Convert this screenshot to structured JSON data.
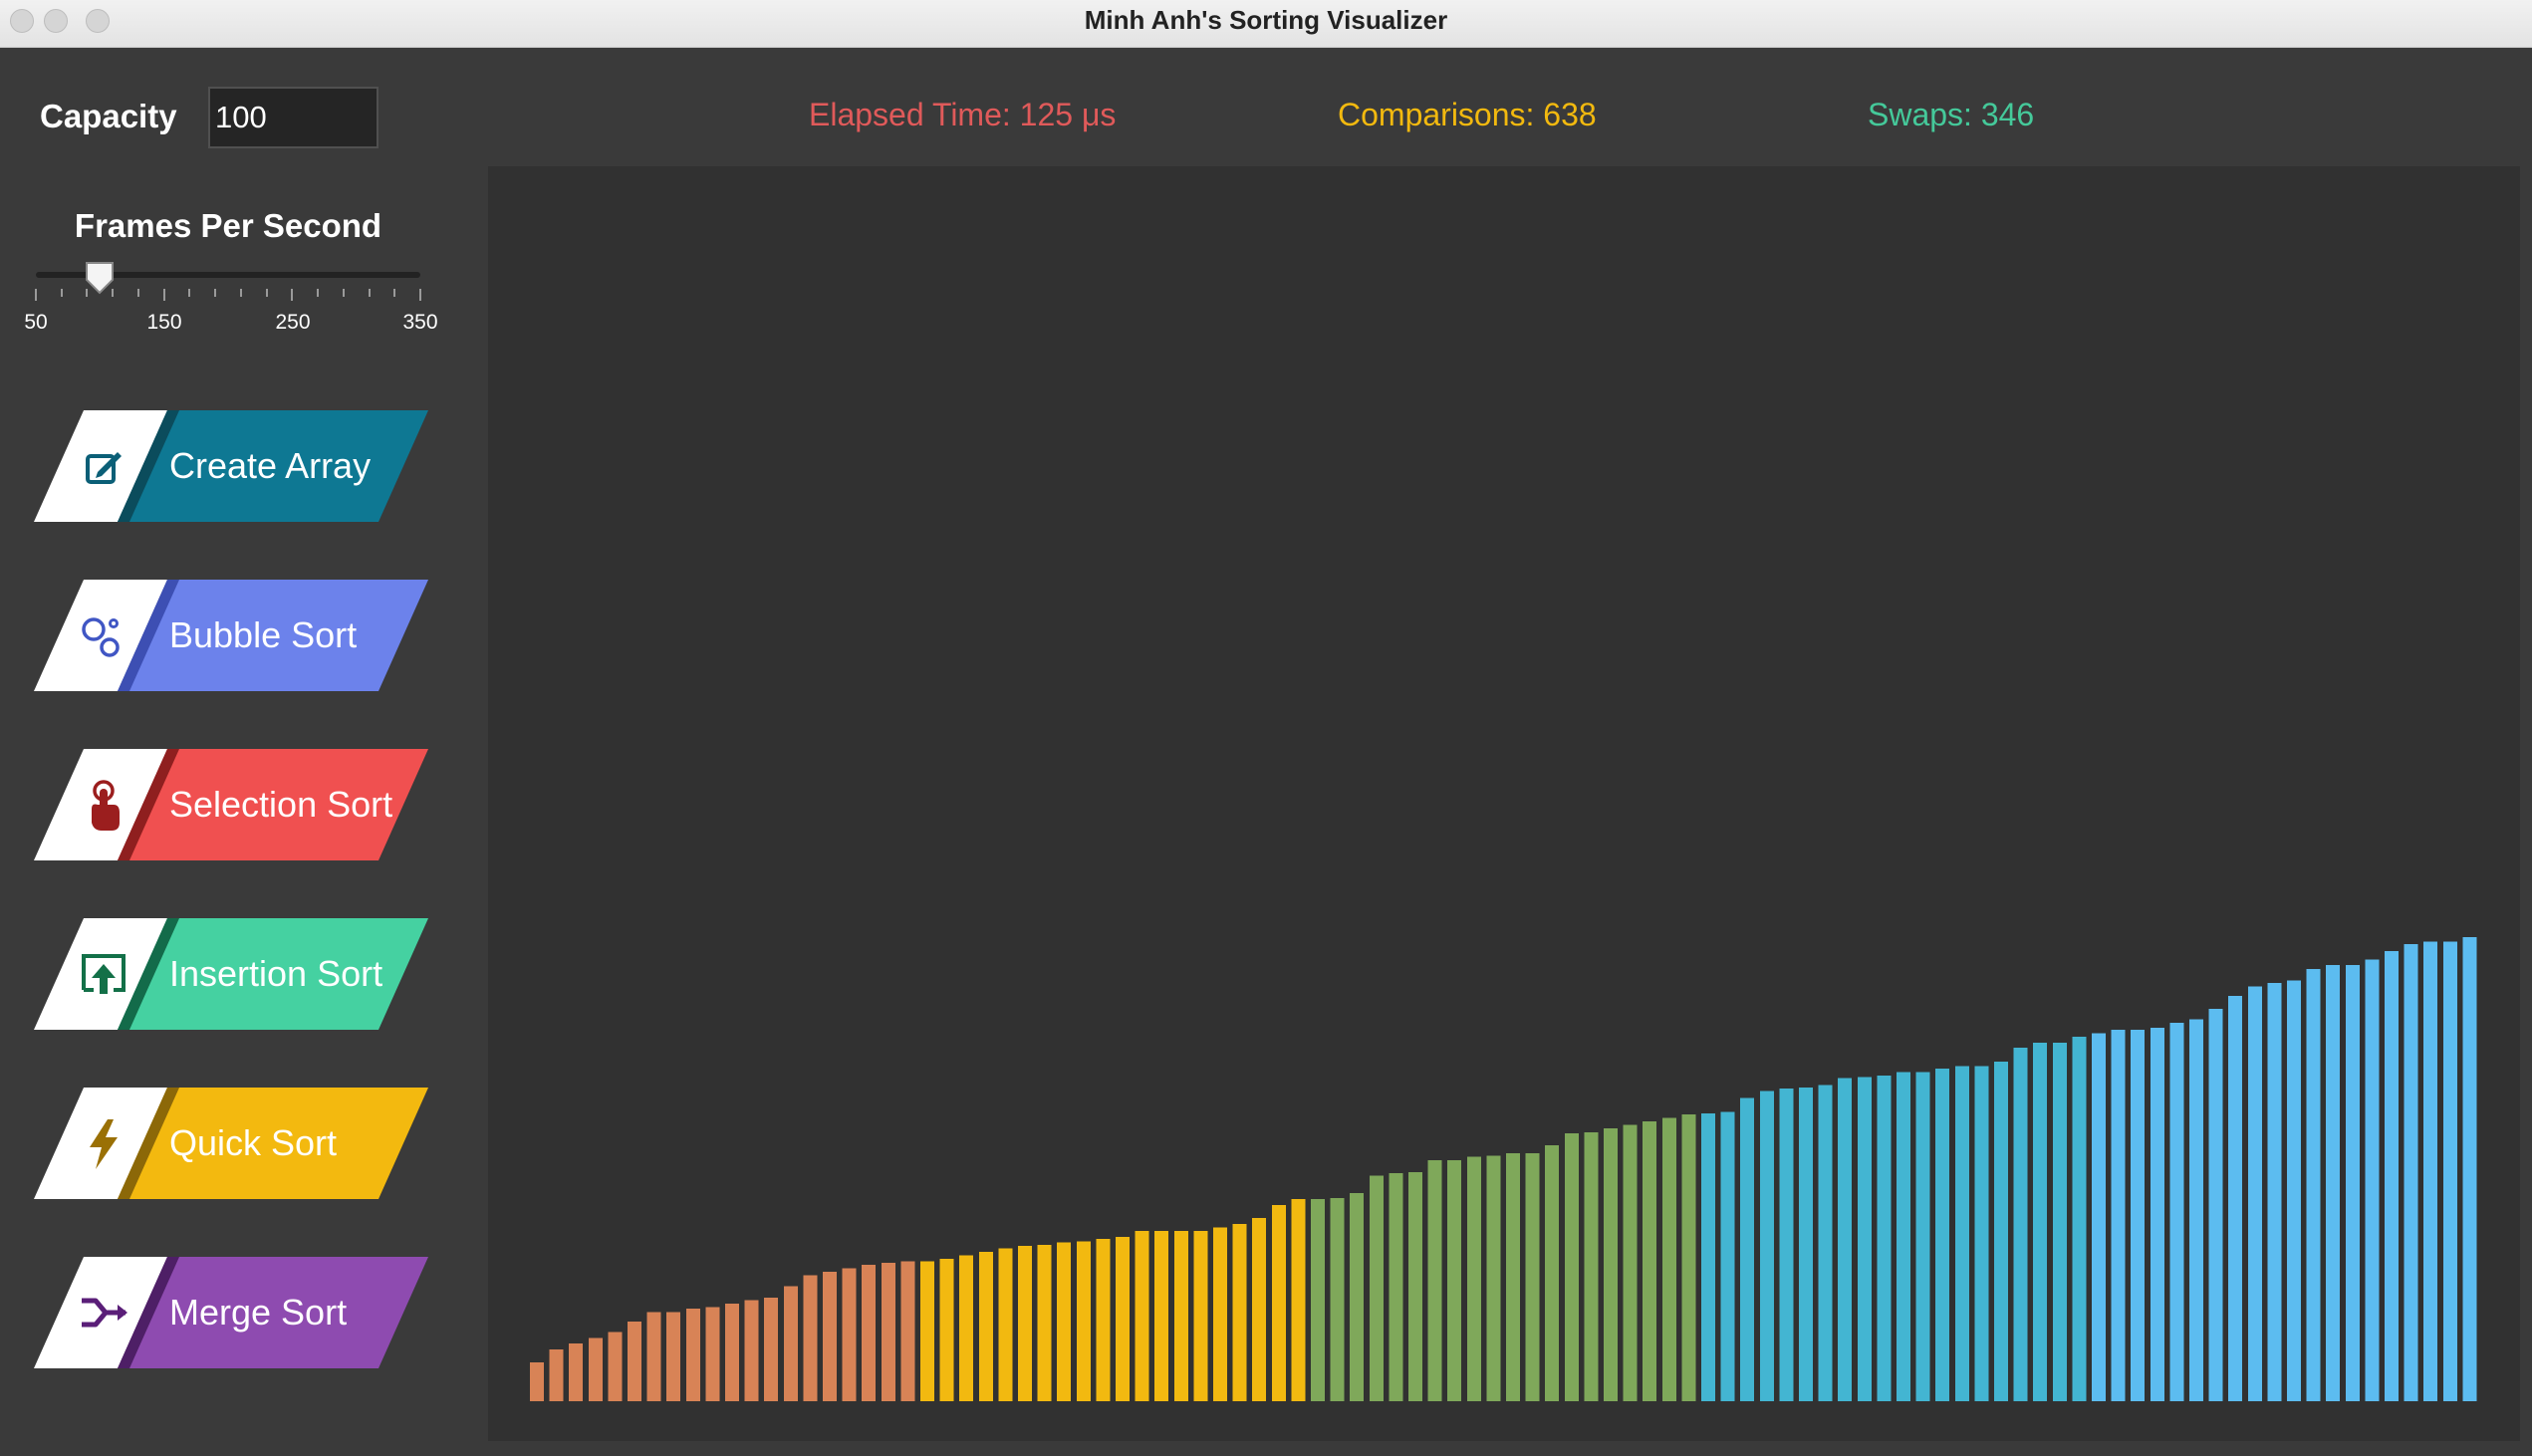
{
  "window": {
    "title": "Minh Anh's Sorting Visualizer"
  },
  "capacity": {
    "label": "Capacity",
    "value": "100"
  },
  "stats": {
    "elapsed": "Elapsed Time: 125 μs",
    "comparisons": "Comparisons: 638",
    "swaps": "Swaps: 346"
  },
  "fps": {
    "label": "Frames Per Second",
    "min": 50,
    "max": 350,
    "value": 100,
    "tick_labels": [
      "50",
      "150",
      "250",
      "350"
    ]
  },
  "buttons": [
    {
      "label": "Create Array",
      "icon": "edit-icon",
      "color": "#0e7893",
      "dark": "#0b4c5c",
      "icon_color": "#0b5f77"
    },
    {
      "label": "Bubble Sort",
      "icon": "bubbles-icon",
      "color": "#6c82eb",
      "dark": "#3d4fb3",
      "icon_color": "#4056c4"
    },
    {
      "label": "Selection Sort",
      "icon": "pointer-icon",
      "color": "#f05050",
      "dark": "#8f1f1f",
      "icon_color": "#9b1e1e"
    },
    {
      "label": "Insertion Sort",
      "icon": "insert-icon",
      "color": "#45d1a1",
      "dark": "#136b4a",
      "icon_color": "#137048"
    },
    {
      "label": "Quick Sort",
      "icon": "lightning-icon",
      "color": "#f3b90f",
      "dark": "#8c6808",
      "icon_color": "#9a7005"
    },
    {
      "label": "Merge Sort",
      "icon": "merge-icon",
      "color": "#8e4bb0",
      "dark": "#4e1f66",
      "icon_color": "#5a1e78"
    }
  ],
  "chart_data": {
    "type": "bar",
    "count": 100,
    "values": [
      3.3,
      4.4,
      4.9,
      5.4,
      5.9,
      6.8,
      7.6,
      7.6,
      7.9,
      8.0,
      8.3,
      8.6,
      8.8,
      9.8,
      10.7,
      11.0,
      11.3,
      11.6,
      11.8,
      11.9,
      11.9,
      12.1,
      12.4,
      12.7,
      13.0,
      13.2,
      13.3,
      13.5,
      13.6,
      13.8,
      14.0,
      14.5,
      14.5,
      14.5,
      14.5,
      14.8,
      15.1,
      15.6,
      16.7,
      17.2,
      17.2,
      17.3,
      17.7,
      19.2,
      19.4,
      19.5,
      20.5,
      20.5,
      20.8,
      20.9,
      21.1,
      21.1,
      21.8,
      22.8,
      22.9,
      23.2,
      23.5,
      23.8,
      24.1,
      24.4,
      24.5,
      24.6,
      25.8,
      26.4,
      26.6,
      26.7,
      26.9,
      27.5,
      27.6,
      27.7,
      28.0,
      28.0,
      28.3,
      28.5,
      28.5,
      28.9,
      30.1,
      30.5,
      30.5,
      31.0,
      31.3,
      31.6,
      31.6,
      31.8,
      32.2,
      32.5,
      33.4,
      34.5,
      35.3,
      35.6,
      35.8,
      36.8,
      37.1,
      37.1,
      37.6,
      38.3,
      38.9,
      39.1,
      39.1,
      39.5
    ],
    "colors": [
      "#d88356",
      "#f2b910",
      "#7fa85a",
      "#43b5d2",
      "#5cbcf0"
    ],
    "color_groups": [
      20,
      20,
      20,
      20,
      20
    ]
  }
}
